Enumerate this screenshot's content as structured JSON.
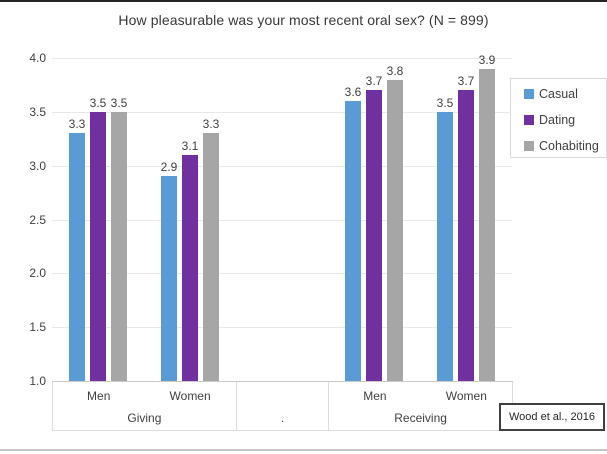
{
  "chart_data": {
    "type": "bar",
    "title": "How pleasurable was your most recent oral sex? (N = 899)",
    "y_axis": {
      "min": 1.0,
      "max": 4.0,
      "step": 0.5,
      "ticks": [
        "4.0",
        "3.5",
        "3.0",
        "2.5",
        "2.0",
        "1.5",
        "1.0"
      ],
      "grid": true
    },
    "categories": [
      {
        "group": "Giving",
        "label": "Men"
      },
      {
        "group": "Giving",
        "label": "Women"
      },
      {
        "group": ".",
        "label": ""
      },
      {
        "group": "Receiving",
        "label": "Men"
      },
      {
        "group": "Receiving",
        "label": "Women"
      }
    ],
    "series": [
      {
        "name": "Casual",
        "color": "#5B9BD5",
        "values": [
          3.3,
          2.9,
          null,
          3.6,
          3.5
        ]
      },
      {
        "name": "Dating",
        "color": "#7030A0",
        "values": [
          3.5,
          3.1,
          null,
          3.7,
          3.7
        ]
      },
      {
        "name": "Cohabiting",
        "color": "#A6A6A6",
        "values": [
          3.5,
          3.3,
          null,
          3.8,
          3.9
        ]
      }
    ],
    "legend": {
      "position": "right",
      "entries": [
        "Casual",
        "Dating",
        "Cohabiting"
      ]
    },
    "source": "Wood et al., 2016"
  }
}
